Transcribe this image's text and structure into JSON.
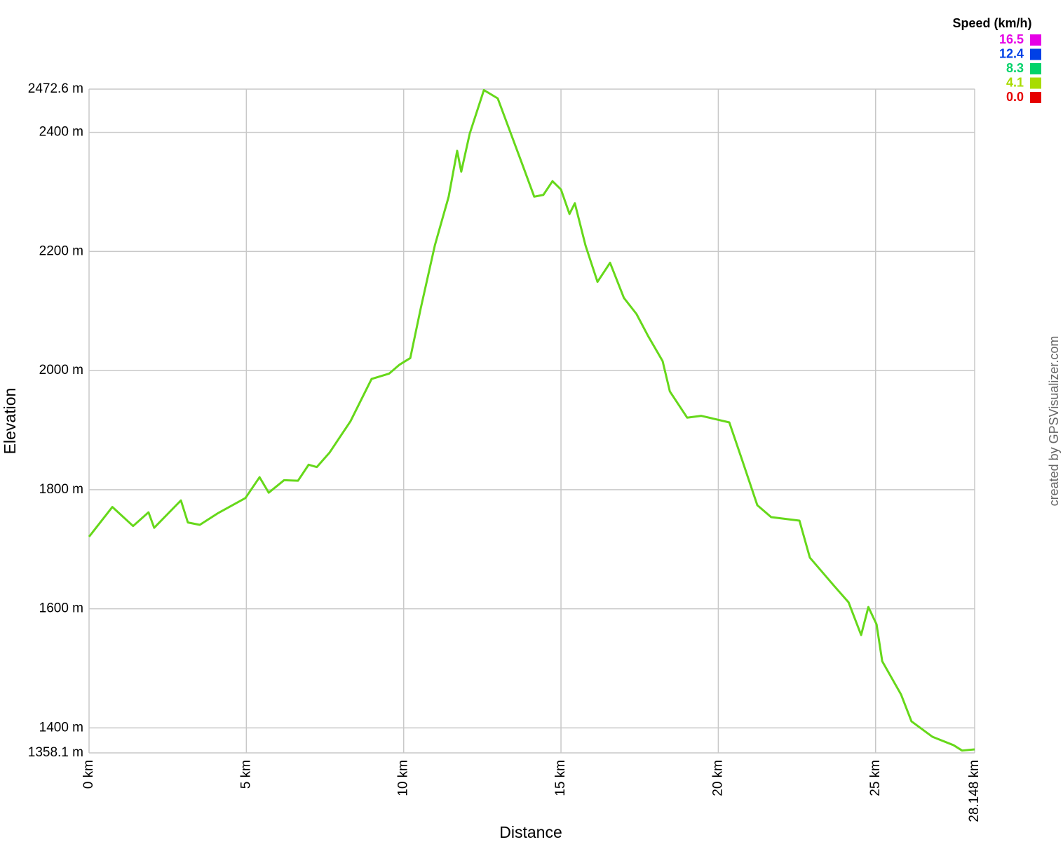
{
  "chart_data": {
    "type": "line",
    "x_label": "Distance",
    "y_label": "Elevation",
    "watermark": "created by GPSVisualizer.com",
    "legend_title": "Speed (km/h)",
    "speed_scale": [
      {
        "value": 16.5,
        "label": "16.5",
        "color": "#e600e6"
      },
      {
        "value": 12.4,
        "label": "12.4",
        "color": "#0040e6"
      },
      {
        "value": 8.3,
        "label": "8.3",
        "color": "#00d36a"
      },
      {
        "value": 4.1,
        "label": "4.1",
        "color": "#a8dc00"
      },
      {
        "value": 0,
        "label": "0.0",
        "color": "#e60000"
      }
    ],
    "grid": true,
    "xlim": [
      0,
      28.148
    ],
    "xticks": [
      {
        "value": 0,
        "label": "0 km"
      },
      {
        "value": 5,
        "label": "5 km"
      },
      {
        "value": 10,
        "label": "10 km"
      },
      {
        "value": 15,
        "label": "15 km"
      },
      {
        "value": 20,
        "label": "20 km"
      },
      {
        "value": 25,
        "label": "25 km"
      },
      {
        "value": 28.148,
        "label": "28.148 km"
      }
    ],
    "ylim": [
      1358.1,
      2472.6
    ],
    "yticks": [
      {
        "value": 1358.1,
        "label": "1358.1 m"
      },
      {
        "value": 1400,
        "label": "1400 m"
      },
      {
        "value": 1600,
        "label": "1600 m"
      },
      {
        "value": 1800,
        "label": "1800 m"
      },
      {
        "value": 2000,
        "label": "2000 m"
      },
      {
        "value": 2200,
        "label": "2200 m"
      },
      {
        "value": 2400,
        "label": "2400 m"
      },
      {
        "value": 2472.6,
        "label": "2472.6 m"
      }
    ],
    "x": [
      0,
      0.74,
      1.4,
      1.89,
      2.07,
      2.92,
      3.14,
      3.52,
      4.08,
      4.97,
      5.42,
      5.71,
      6.2,
      6.64,
      6.98,
      7.24,
      7.64,
      8.31,
      8.98,
      9.54,
      9.87,
      10.21,
      10.54,
      10.99,
      11.43,
      11.7,
      11.83,
      12.1,
      12.55,
      12.99,
      13.78,
      14.15,
      14.44,
      14.73,
      15.0,
      15.27,
      15.44,
      15.78,
      16.16,
      16.56,
      17.0,
      17.4,
      17.78,
      18.23,
      18.46,
      19.01,
      19.46,
      20.35,
      20.75,
      21.24,
      21.68,
      22.58,
      22.91,
      23.69,
      24.14,
      24.54,
      24.77,
      25.03,
      25.21,
      25.81,
      26.14,
      26.81,
      27.48,
      27.75,
      28.148
    ],
    "series": [
      {
        "color": "#66d81a",
        "values": [
          1721,
          1771,
          1739,
          1762,
          1736,
          1782,
          1745,
          1741,
          1760,
          1786,
          1821,
          1795,
          1816,
          1815,
          1842,
          1838,
          1862,
          1915,
          1986,
          1995,
          2010,
          2021,
          2104,
          2210,
          2292,
          2369,
          2334,
          2398,
          2471,
          2457,
          2345,
          2292,
          2295,
          2318,
          2304,
          2263,
          2281,
          2210,
          2149,
          2181,
          2122,
          2095,
          2057,
          2016,
          1965,
          1921,
          1924,
          1913,
          1851,
          1774,
          1754,
          1748,
          1686,
          1638,
          1611,
          1556,
          1603,
          1574,
          1512,
          1456,
          1411,
          1385,
          1371,
          1362,
          1364
        ]
      }
    ]
  }
}
